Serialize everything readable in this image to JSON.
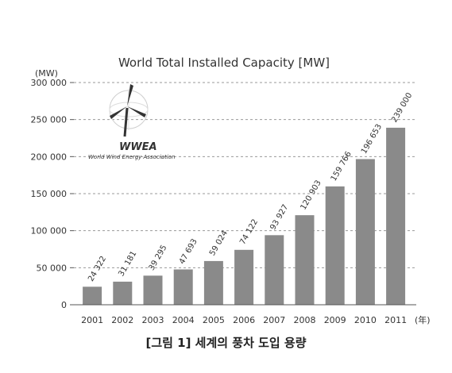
{
  "chart_data": {
    "type": "bar",
    "title": "World Total Installed Capacity [MW]",
    "ylabel": "(MW)",
    "xunit": "(年)",
    "ylim": [
      0,
      300000
    ],
    "yticks": [
      0,
      50000,
      100000,
      150000,
      200000,
      250000,
      300000
    ],
    "ytick_labels": [
      "0",
      "50 000",
      "100 000",
      "150 000",
      "200 000",
      "250 000",
      "300 000"
    ],
    "grid": true,
    "categories": [
      "2001",
      "2002",
      "2003",
      "2004",
      "2005",
      "2006",
      "2007",
      "2008",
      "2009",
      "2010",
      "2011"
    ],
    "values": [
      24322,
      31181,
      39295,
      47693,
      59024,
      74122,
      93927,
      120903,
      159766,
      196653,
      239000
    ],
    "value_labels": [
      "24 322",
      "31 181",
      "39 295",
      "47 693",
      "59 024",
      "74 122",
      "93 927",
      "120 903",
      "159 766",
      "196 653",
      "239 000"
    ]
  },
  "logo": {
    "icon": "wind-turbine-icon",
    "name": "WWEA",
    "subtitle": "World Wind Energy Association"
  },
  "colors": {
    "bar": "#8a8a8a",
    "grid": "#9a9a9a",
    "axis": "#555555"
  },
  "caption": "[그림 1] 세계의 풍차 도입 용량"
}
